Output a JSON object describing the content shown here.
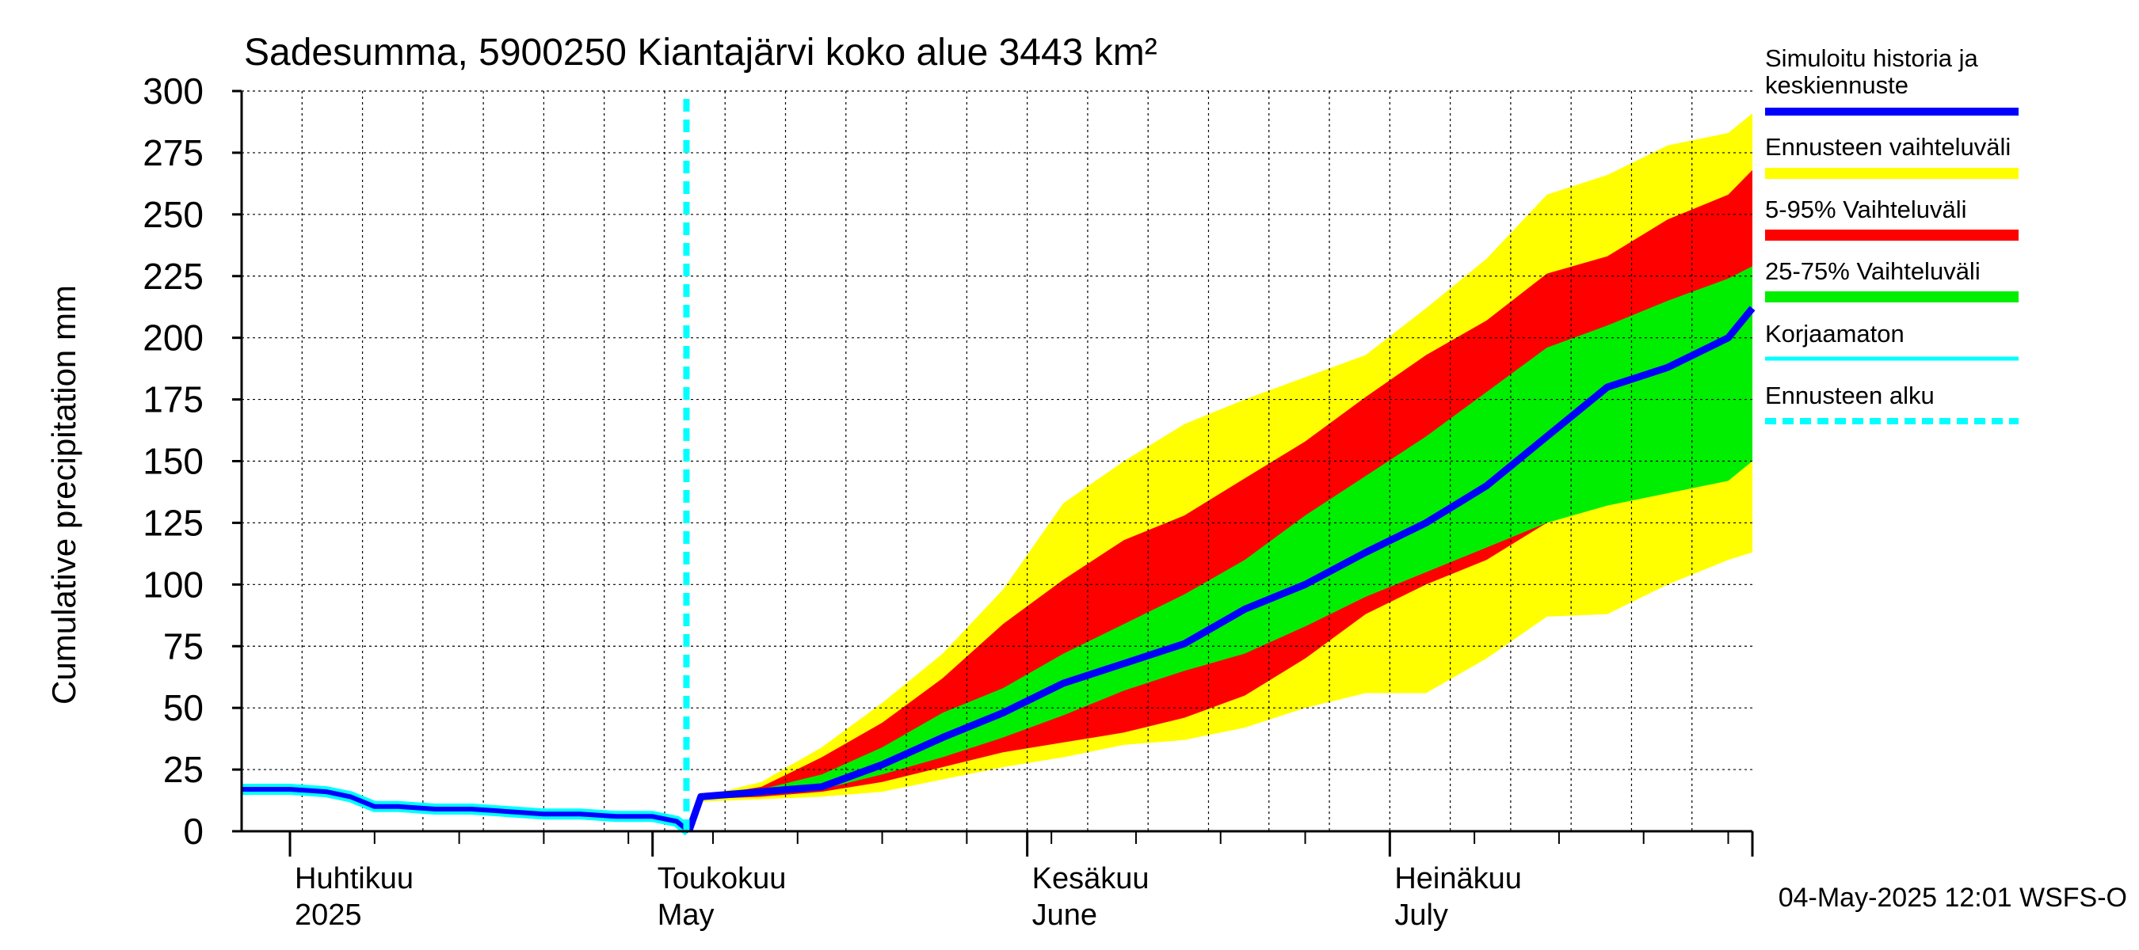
{
  "chart_data": {
    "type": "area",
    "title": "Sadesumma, 5900250 Kiantajärvi koko alue 3443 km²",
    "ylabel": "Cumulative precipitation   mm",
    "xlabel": "",
    "ylim": [
      0,
      300
    ],
    "yticks": [
      0,
      25,
      50,
      75,
      100,
      125,
      150,
      175,
      200,
      225,
      250,
      275,
      300
    ],
    "xlim": [
      "2025-03-28",
      "2025-07-31"
    ],
    "grid": true,
    "legend_position": "right",
    "month_labels": [
      {
        "date": "2025-04-01",
        "line1": "Huhtikuu",
        "line2": "2025"
      },
      {
        "date": "2025-05-01",
        "line1": "Toukokuu",
        "line2": "May"
      },
      {
        "date": "2025-06-01",
        "line1": "Kesäkuu",
        "line2": "June"
      },
      {
        "date": "2025-07-01",
        "line1": "Heinäkuu",
        "line2": "July"
      }
    ],
    "forecast_start": "2025-05-04",
    "timestamp": "04-May-2025 12:01 WSFS-O",
    "legend": [
      {
        "label": "Simuloitu historia ja keskiennuste",
        "color": "#0000ff",
        "style": "solid"
      },
      {
        "label": "Ennusteen vaihteluväli",
        "color": "#ffff00",
        "style": "solid"
      },
      {
        "label": "5-95% Vaihteluväli",
        "color": "#ff0000",
        "style": "solid"
      },
      {
        "label": "25-75% Vaihteluväli",
        "color": "#00ee00",
        "style": "solid"
      },
      {
        "label": "Korjaamaton",
        "color": "#00ffff",
        "style": "solid"
      },
      {
        "label": "Ennusteen alku",
        "color": "#00ffff",
        "style": "dashed"
      }
    ],
    "forecast_x": [
      "2025-05-04",
      "2025-05-05",
      "2025-05-10",
      "2025-05-15",
      "2025-05-20",
      "2025-05-25",
      "2025-05-30",
      "2025-06-04",
      "2025-06-09",
      "2025-06-14",
      "2025-06-19",
      "2025-06-24",
      "2025-06-29",
      "2025-07-04",
      "2025-07-09",
      "2025-07-14",
      "2025-07-19",
      "2025-07-24",
      "2025-07-29",
      "2025-07-31"
    ],
    "series": [
      {
        "name": "Ennusteen vaihteluväli",
        "role": "band",
        "color": "#ffff00",
        "lower": [
          0,
          12,
          13,
          14,
          16,
          21,
          26,
          30,
          35,
          37,
          42,
          50,
          56,
          56,
          70,
          87,
          88,
          100,
          110,
          113
        ],
        "upper": [
          0,
          14,
          20,
          34,
          52,
          72,
          98,
          133,
          150,
          165,
          175,
          184,
          193,
          212,
          232,
          258,
          266,
          278,
          283,
          291
        ]
      },
      {
        "name": "5-95% Vaihteluväli",
        "role": "band",
        "color": "#ff0000",
        "lower": [
          0,
          13,
          14,
          16,
          20,
          26,
          32,
          36,
          40,
          46,
          55,
          70,
          88,
          100,
          110,
          125,
          135,
          140,
          150,
          165
        ]
      },
      {
        "name": "5-95% Vaihteluväli upper",
        "role": "band-upper",
        "color": "#ff0000",
        "values": [
          0,
          14,
          18,
          30,
          44,
          62,
          84,
          102,
          118,
          128,
          143,
          158,
          176,
          193,
          207,
          226,
          233,
          248,
          258,
          268
        ]
      },
      {
        "name": "25-75% Vaihteluväli",
        "role": "band",
        "color": "#00ee00",
        "lower": [
          0,
          13,
          15,
          17,
          23,
          30,
          38,
          47,
          57,
          65,
          72,
          83,
          95,
          105,
          115,
          125,
          132,
          137,
          142,
          150
        ],
        "upper": [
          0,
          14,
          17,
          23,
          34,
          48,
          58,
          72,
          84,
          96,
          110,
          128,
          144,
          160,
          178,
          196,
          205,
          215,
          224,
          229
        ]
      },
      {
        "name": "Simuloitu historia ja keskiennuste",
        "role": "line",
        "color": "#0000ff",
        "values": [
          0,
          14,
          16,
          18,
          27,
          38,
          48,
          60,
          68,
          76,
          90,
          100,
          113,
          125,
          140,
          160,
          180,
          188,
          200,
          212
        ]
      }
    ],
    "history_x": [
      "2025-03-28",
      "2025-04-01",
      "2025-04-04",
      "2025-04-06",
      "2025-04-08",
      "2025-04-10",
      "2025-04-13",
      "2025-04-16",
      "2025-04-19",
      "2025-04-22",
      "2025-04-25",
      "2025-04-28",
      "2025-05-01",
      "2025-05-03",
      "2025-05-04"
    ],
    "history_y": [
      17,
      17,
      16,
      14,
      10,
      10,
      9,
      9,
      8,
      7,
      7,
      6,
      6,
      4,
      0
    ]
  }
}
